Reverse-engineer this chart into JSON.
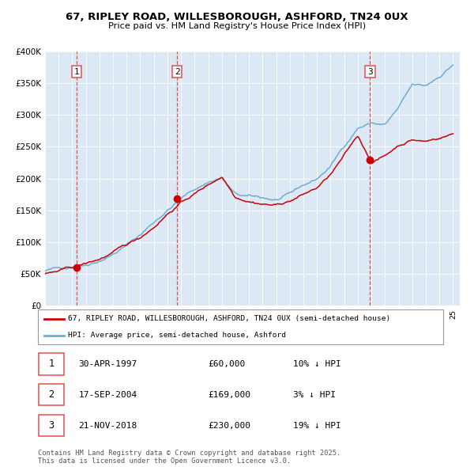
{
  "title1": "67, RIPLEY ROAD, WILLESBOROUGH, ASHFORD, TN24 0UX",
  "title2": "Price paid vs. HM Land Registry's House Price Index (HPI)",
  "bg_color": "#dce9f5",
  "red_color": "#cc0000",
  "blue_color": "#6aaed6",
  "dashed_color": "#e05050",
  "sale_dates": [
    1997.33,
    2004.71,
    2018.9
  ],
  "sale_prices": [
    60000,
    169000,
    230000
  ],
  "sale_labels": [
    "1",
    "2",
    "3"
  ],
  "legend_line1": "67, RIPLEY ROAD, WILLESBOROUGH, ASHFORD, TN24 0UX (semi-detached house)",
  "legend_line2": "HPI: Average price, semi-detached house, Ashford",
  "table_rows": [
    [
      "1",
      "30-APR-1997",
      "£60,000",
      "10% ↓ HPI"
    ],
    [
      "2",
      "17-SEP-2004",
      "£169,000",
      "3% ↓ HPI"
    ],
    [
      "3",
      "21-NOV-2018",
      "£230,000",
      "19% ↓ HPI"
    ]
  ],
  "footnote": "Contains HM Land Registry data © Crown copyright and database right 2025.\nThis data is licensed under the Open Government Licence v3.0.",
  "ylim": [
    0,
    400000
  ],
  "xlim_start": 1995.3,
  "xlim_end": 2025.5,
  "hpi_years": [
    1995,
    1996,
    1997,
    1998,
    1999,
    2000,
    2001,
    2002,
    2003,
    2004,
    2005,
    2006,
    2007,
    2008,
    2009,
    2010,
    2011,
    2012,
    2013,
    2014,
    2015,
    2016,
    2017,
    2018,
    2019,
    2020,
    2021,
    2022,
    2023,
    2024,
    2025
  ],
  "hpi_vals": [
    55000,
    58000,
    62000,
    68000,
    77000,
    88000,
    102000,
    118000,
    138000,
    158000,
    176000,
    190000,
    202000,
    210000,
    182000,
    177000,
    174000,
    171000,
    177000,
    190000,
    200000,
    220000,
    252000,
    282000,
    290000,
    287000,
    312000,
    345000,
    342000,
    358000,
    378000
  ],
  "price_years": [
    1995,
    1996,
    1997,
    1998,
    1999,
    2000,
    2001,
    2002,
    2003,
    2004,
    2005,
    2006,
    2007,
    2008,
    2009,
    2010,
    2011,
    2012,
    2013,
    2014,
    2015,
    2016,
    2017,
    2018,
    2019,
    2020,
    2021,
    2022,
    2023,
    2024,
    2025
  ],
  "price_vals": [
    50000,
    53000,
    58000,
    63000,
    70000,
    80000,
    90000,
    102000,
    120000,
    142000,
    160000,
    174000,
    188000,
    202000,
    172000,
    168000,
    165000,
    163000,
    170000,
    180000,
    190000,
    210000,
    238000,
    268000,
    228000,
    238000,
    255000,
    265000,
    262000,
    268000,
    275000
  ]
}
